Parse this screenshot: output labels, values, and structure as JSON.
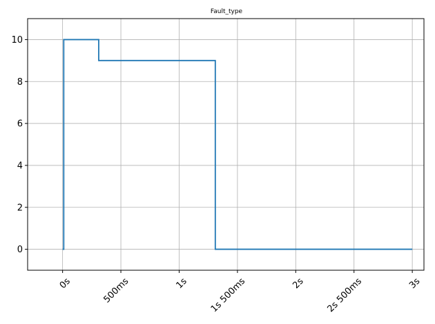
{
  "chart_data": {
    "type": "line",
    "title": "Fault_type",
    "xlabel": "",
    "ylabel": "",
    "x_unit": "seconds",
    "xlim": [
      -0.3,
      3.1
    ],
    "ylim": [
      -1,
      11
    ],
    "grid": true,
    "x_ticks": [
      0,
      0.5,
      1,
      1.5,
      2,
      2.5,
      3
    ],
    "x_tick_labels": [
      "0s",
      "500ms",
      "1s",
      "1s 500ms",
      "2s",
      "2s 500ms",
      "3s"
    ],
    "y_ticks": [
      0,
      2,
      4,
      6,
      8,
      10
    ],
    "y_tick_labels": [
      "0",
      "2",
      "4",
      "6",
      "8",
      "10"
    ],
    "series": [
      {
        "color": "#1f77b4",
        "step": "post",
        "x": [
          0.0,
          0.01,
          0.31,
          1.31,
          3.0
        ],
        "y": [
          0,
          10,
          9,
          0,
          0
        ]
      }
    ]
  }
}
